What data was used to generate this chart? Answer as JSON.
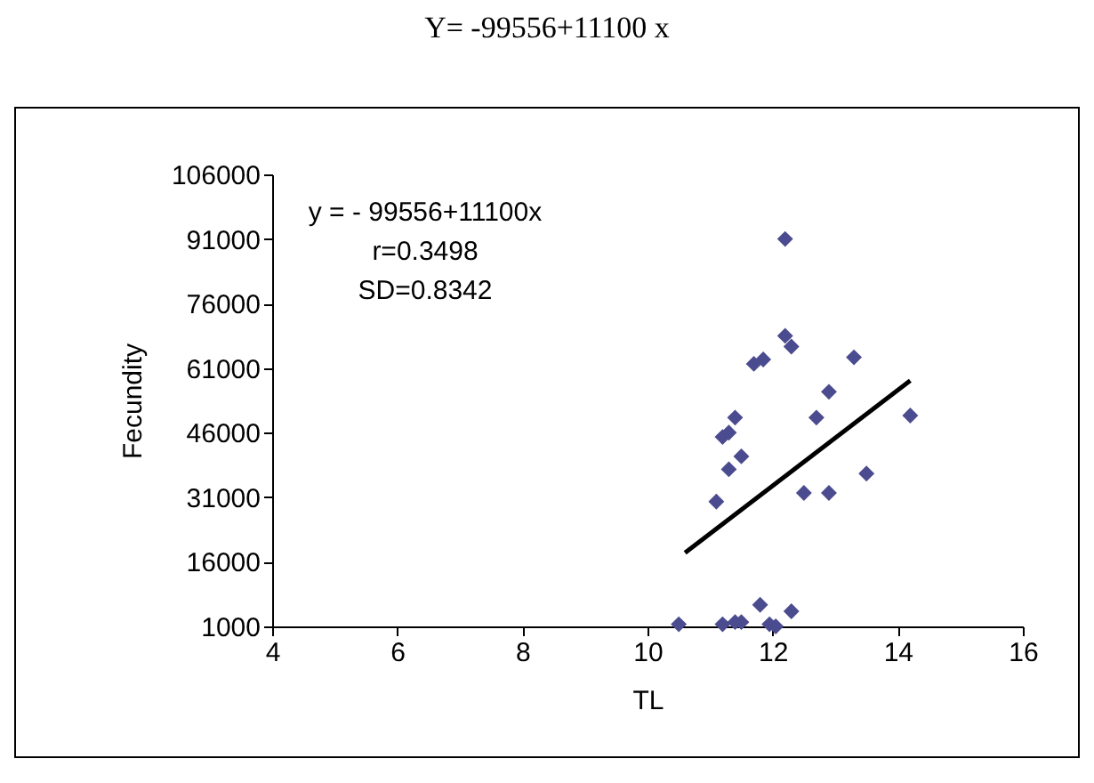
{
  "chart_data": {
    "type": "scatter",
    "title": "Y= -99556+11100 x",
    "xlabel": "TL",
    "ylabel": "Fecundity",
    "annotations": [
      "y = - 99556+11100x",
      "r=0.3498",
      "SD=0.8342"
    ],
    "xlim": [
      4,
      16
    ],
    "xticks": [
      4,
      6,
      8,
      10,
      12,
      14,
      16
    ],
    "ylim": [
      1000,
      106000
    ],
    "yticks": [
      1000,
      16000,
      31000,
      46000,
      61000,
      76000,
      91000,
      106000
    ],
    "grid": false,
    "series": [
      {
        "color": "#4b4b8f",
        "marker": "diamond",
        "x": [
          10.5,
          11.2,
          11.4,
          11.8,
          11.95,
          12.3,
          12.05,
          11.5,
          11.1,
          11.3,
          11.5,
          11.2,
          11.3,
          11.4,
          11.7,
          11.85,
          12.2,
          12.3,
          12.2,
          13.3,
          12.9,
          12.7,
          14.2,
          12.5,
          12.9,
          13.5
        ],
        "values": [
          1500,
          1500,
          2000,
          6000,
          1500,
          4500,
          1000,
          2000,
          30000,
          37500,
          40500,
          45000,
          46000,
          49500,
          62000,
          63000,
          68500,
          66000,
          91000,
          63500,
          55500,
          49500,
          50000,
          32000,
          32000,
          36500
        ]
      },
      {
        "type": "line",
        "color": "#000000",
        "x": [
          10.6,
          14.2
        ],
        "values": [
          18100,
          58100
        ]
      }
    ]
  }
}
